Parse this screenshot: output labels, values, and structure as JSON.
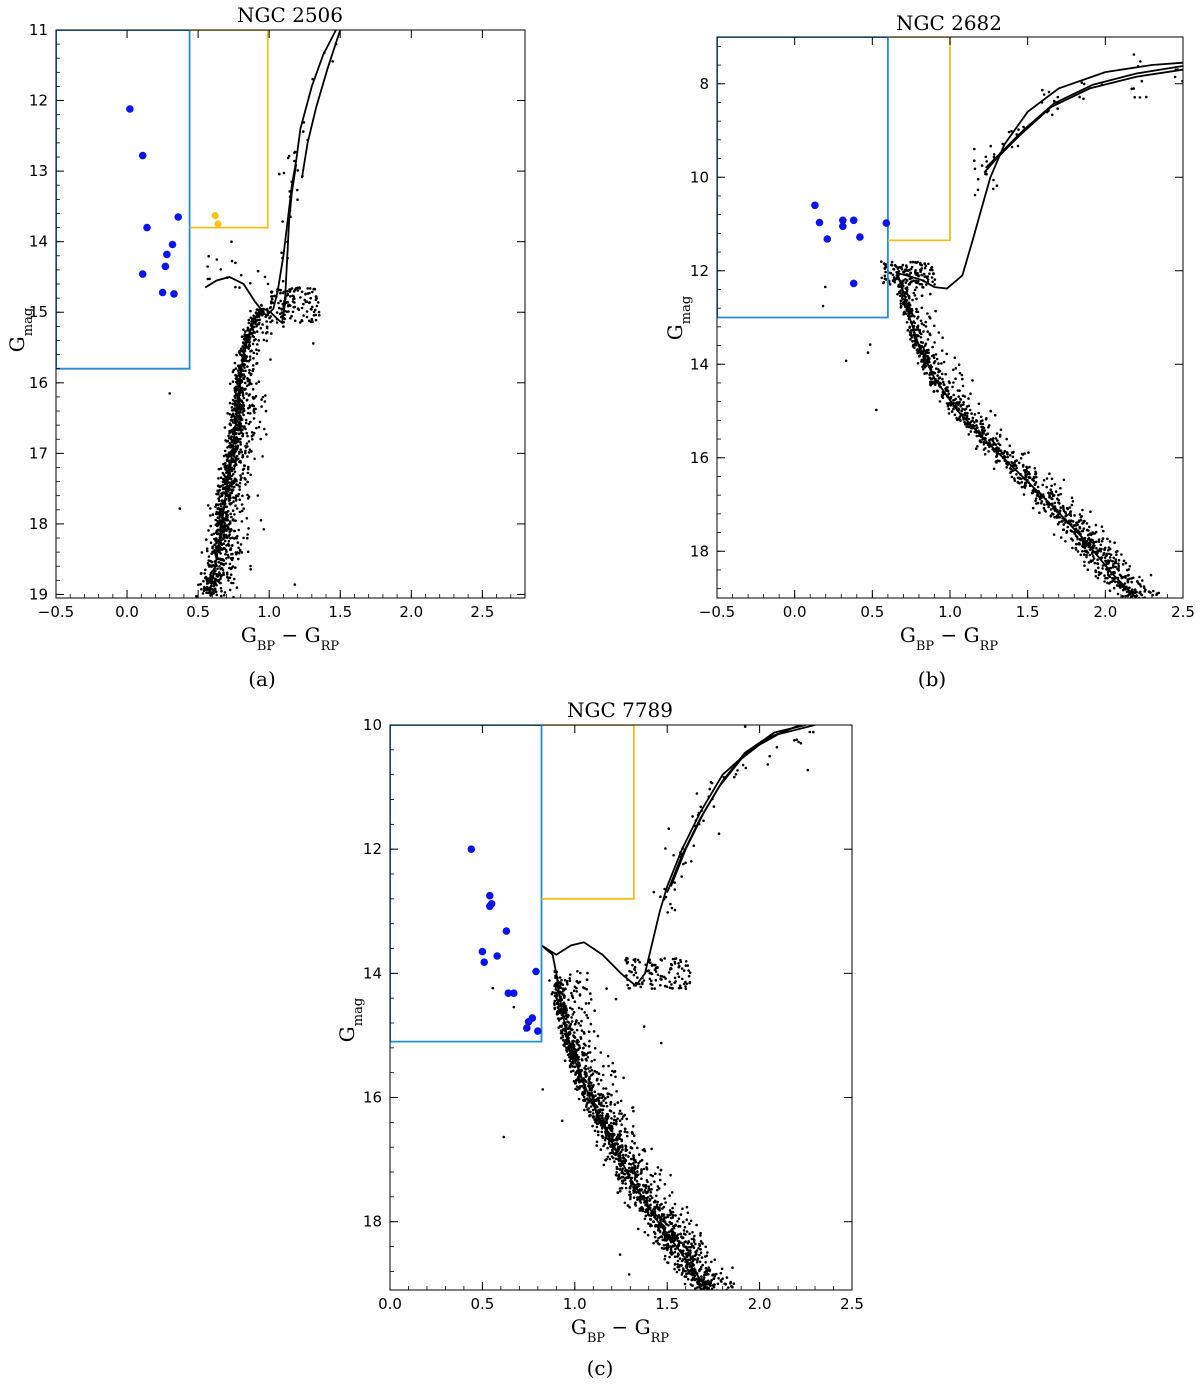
{
  "chart_data": [
    {
      "type": "scatter",
      "title": "NGC 2506",
      "caption": "(a)",
      "xlabel": "G_BP − G_RP",
      "ylabel": "G_mag",
      "xlim": [
        -0.5,
        2.8
      ],
      "ylim": [
        19.05,
        11.0
      ],
      "xticks": [
        -0.5,
        0.0,
        0.5,
        1.0,
        1.5,
        2.0,
        2.5
      ],
      "xticklabels": [
        "−0.5",
        "0.0",
        "0.5",
        "1.0",
        "1.5",
        "2.0",
        "2.5"
      ],
      "yticks": [
        11,
        12,
        13,
        14,
        15,
        16,
        17,
        18,
        19
      ],
      "yticklabels": [
        "11",
        "12",
        "13",
        "14",
        "15",
        "16",
        "17",
        "18",
        "19"
      ],
      "colors": {
        "blue_box": "#1f8fdc",
        "yellow_box": "#f2c018",
        "blue_stars": "#0a14ee",
        "yellow_stars": "#f7c31b",
        "members": "#000000"
      },
      "blue_box": {
        "x": [
          -0.5,
          0.44
        ],
        "y": [
          11.0,
          15.8
        ]
      },
      "yellow_box": {
        "x": [
          0.44,
          0.99
        ],
        "y": [
          11.0,
          13.8
        ]
      },
      "isochrone": {
        "ms": [
          [
            0.58,
            19.0
          ],
          [
            0.62,
            18.6
          ],
          [
            0.66,
            18.1
          ],
          [
            0.7,
            17.5
          ],
          [
            0.74,
            17.0
          ],
          [
            0.77,
            16.5
          ],
          [
            0.79,
            16.0
          ],
          [
            0.82,
            15.6
          ],
          [
            0.86,
            15.3
          ],
          [
            0.91,
            15.05
          ],
          [
            0.96,
            14.95
          ],
          [
            1.01,
            15.0
          ],
          [
            1.06,
            15.1
          ],
          [
            1.09,
            15.15
          ],
          [
            1.11,
            14.9
          ],
          [
            1.12,
            14.5
          ],
          [
            1.13,
            14.1
          ],
          [
            1.14,
            13.7
          ],
          [
            1.16,
            13.3
          ],
          [
            1.19,
            12.9
          ]
        ],
        "hook": [
          [
            0.55,
            14.65
          ],
          [
            0.63,
            14.55
          ],
          [
            0.72,
            14.5
          ],
          [
            0.82,
            14.6
          ],
          [
            0.9,
            14.85
          ],
          [
            0.98,
            15.05
          ],
          [
            1.03,
            14.95
          ],
          [
            1.06,
            14.7
          ],
          [
            1.1,
            14.2
          ],
          [
            1.13,
            13.7
          ],
          [
            1.16,
            13.2
          ],
          [
            1.19,
            12.85
          ],
          [
            1.22,
            12.4
          ],
          [
            1.3,
            11.8
          ],
          [
            1.38,
            11.35
          ],
          [
            1.47,
            11.0
          ]
        ],
        "rgb2": [
          [
            1.23,
            13.1
          ],
          [
            1.27,
            12.6
          ],
          [
            1.33,
            12.1
          ],
          [
            1.41,
            11.55
          ],
          [
            1.5,
            11.0
          ]
        ]
      },
      "blue_stars": [
        [
          0.02,
          12.12
        ],
        [
          0.11,
          12.78
        ],
        [
          0.14,
          13.8
        ],
        [
          0.36,
          13.65
        ],
        [
          0.32,
          14.04
        ],
        [
          0.28,
          14.18
        ],
        [
          0.27,
          14.35
        ],
        [
          0.11,
          14.46
        ],
        [
          0.25,
          14.72
        ],
        [
          0.33,
          14.74
        ]
      ],
      "yellow_stars": [
        [
          0.62,
          13.63
        ],
        [
          0.64,
          13.75
        ]
      ],
      "members": {
        "cmd_offset": 0.0,
        "ms_turnoff_x": 0.55,
        "ms_turnoff_y": 14.7,
        "ms_bottom_x": 1.22,
        "ms_bottom_y": 19.0,
        "n": 1300
      }
    },
    {
      "type": "scatter",
      "title": "NGC 2682",
      "caption": "(b)",
      "xlabel": "G_BP − G_RP",
      "ylabel": "G_mag",
      "xlim": [
        -0.5,
        2.5
      ],
      "ylim": [
        19.0,
        7.0
      ],
      "xticks": [
        -0.5,
        0.0,
        0.5,
        1.0,
        1.5,
        2.0,
        2.5
      ],
      "xticklabels": [
        "−0.5",
        "0.0",
        "0.5",
        "1.0",
        "1.5",
        "2.0",
        "2.5"
      ],
      "yticks": [
        8,
        10,
        12,
        14,
        16,
        18
      ],
      "yticklabels": [
        "8",
        "10",
        "12",
        "14",
        "16",
        "18"
      ],
      "colors": {
        "blue_box": "#1f8fdc",
        "yellow_box": "#f2c018",
        "blue_stars": "#0a14ee",
        "members": "#000000"
      },
      "blue_box": {
        "x": [
          -0.5,
          0.6
        ],
        "y": [
          7.0,
          13.0
        ]
      },
      "yellow_box": {
        "x": [
          0.6,
          1.0
        ],
        "y": [
          7.0,
          11.35
        ]
      },
      "isochrone": {
        "ms": [
          [
            2.2,
            19.0
          ],
          [
            2.05,
            18.5
          ],
          [
            1.85,
            17.7
          ],
          [
            1.65,
            17.0
          ],
          [
            1.45,
            16.35
          ],
          [
            1.25,
            15.7
          ],
          [
            1.05,
            15.0
          ],
          [
            0.9,
            14.3
          ],
          [
            0.8,
            13.6
          ],
          [
            0.74,
            13.0
          ],
          [
            0.71,
            12.55
          ],
          [
            0.68,
            12.25
          ],
          [
            0.66,
            12.05
          ],
          [
            0.72,
            12.1
          ],
          [
            0.82,
            12.2
          ],
          [
            0.9,
            12.35
          ],
          [
            0.98,
            12.38
          ],
          [
            1.08,
            12.1
          ],
          [
            1.15,
            11.3
          ],
          [
            1.2,
            10.7
          ],
          [
            1.26,
            10.0
          ],
          [
            1.35,
            9.3
          ],
          [
            1.5,
            8.6
          ],
          [
            1.7,
            8.1
          ],
          [
            2.0,
            7.75
          ],
          [
            2.3,
            7.6
          ],
          [
            2.5,
            7.55
          ]
        ],
        "hook": [
          [
            1.22,
            9.9
          ],
          [
            1.3,
            9.6
          ],
          [
            1.45,
            9.1
          ],
          [
            1.65,
            8.5
          ],
          [
            1.9,
            8.1
          ],
          [
            2.2,
            7.85
          ],
          [
            2.5,
            7.7
          ]
        ],
        "rgb2": [
          [
            1.23,
            9.8
          ],
          [
            1.32,
            9.5
          ],
          [
            1.47,
            9.0
          ],
          [
            1.67,
            8.42
          ],
          [
            1.92,
            8.02
          ],
          [
            2.2,
            7.78
          ],
          [
            2.5,
            7.62
          ]
        ]
      },
      "blue_stars": [
        [
          0.13,
          10.6
        ],
        [
          0.16,
          10.97
        ],
        [
          0.21,
          11.32
        ],
        [
          0.31,
          11.05
        ],
        [
          0.31,
          10.92
        ],
        [
          0.38,
          10.92
        ],
        [
          0.42,
          11.28
        ],
        [
          0.38,
          12.27
        ],
        [
          0.59,
          10.98
        ]
      ],
      "members": {
        "cmd_offset": 0.0,
        "n": 1200
      }
    },
    {
      "type": "scatter",
      "title": "NGC 7789",
      "caption": "(c)",
      "xlabel": "G_BP − G_RP",
      "ylabel": "G_mag",
      "xlim": [
        0.0,
        2.5
      ],
      "ylim": [
        19.1,
        10.0
      ],
      "xticks": [
        0.0,
        0.5,
        1.0,
        1.5,
        2.0,
        2.5
      ],
      "xticklabels": [
        "0.0",
        "0.5",
        "1.0",
        "1.5",
        "2.0",
        "2.5"
      ],
      "yticks": [
        10,
        12,
        14,
        16,
        18
      ],
      "yticklabels": [
        "10",
        "12",
        "14",
        "16",
        "18"
      ],
      "colors": {
        "blue_box": "#1f8fdc",
        "yellow_box": "#f2c018",
        "blue_stars": "#0a14ee",
        "members": "#000000"
      },
      "blue_box": {
        "x": [
          0.0,
          0.82
        ],
        "y": [
          10.0,
          15.1
        ]
      },
      "yellow_box": {
        "x": [
          0.82,
          1.32
        ],
        "y": [
          10.0,
          12.8
        ]
      },
      "isochrone": {
        "ms": [
          [
            1.72,
            19.1
          ],
          [
            1.6,
            18.6
          ],
          [
            1.45,
            18.0
          ],
          [
            1.3,
            17.3
          ],
          [
            1.18,
            16.6
          ],
          [
            1.08,
            16.0
          ],
          [
            1.0,
            15.4
          ],
          [
            0.95,
            14.9
          ],
          [
            0.92,
            14.4
          ],
          [
            0.9,
            14.0
          ],
          [
            0.88,
            13.7
          ],
          [
            0.82,
            13.55
          ],
          [
            0.9,
            13.7
          ],
          [
            0.98,
            13.55
          ],
          [
            1.05,
            13.5
          ],
          [
            1.15,
            13.7
          ],
          [
            1.25,
            14.0
          ],
          [
            1.33,
            14.2
          ],
          [
            1.38,
            14.0
          ],
          [
            1.42,
            13.5
          ],
          [
            1.46,
            13.0
          ],
          [
            1.5,
            12.6
          ],
          [
            1.58,
            12.0
          ],
          [
            1.68,
            11.4
          ],
          [
            1.8,
            10.8
          ],
          [
            1.95,
            10.4
          ],
          [
            2.1,
            10.15
          ],
          [
            2.3,
            10.0
          ]
        ],
        "hook": [
          [
            1.5,
            12.7
          ],
          [
            1.58,
            12.1
          ],
          [
            1.68,
            11.5
          ],
          [
            1.78,
            11.0
          ],
          [
            1.9,
            10.55
          ],
          [
            2.05,
            10.2
          ],
          [
            2.22,
            10.0
          ]
        ],
        "rgb2": [
          [
            1.52,
            12.6
          ],
          [
            1.6,
            12.0
          ],
          [
            1.7,
            11.4
          ],
          [
            1.8,
            10.9
          ],
          [
            1.92,
            10.45
          ],
          [
            2.08,
            10.12
          ],
          [
            2.25,
            10.0
          ]
        ]
      },
      "blue_stars": [
        [
          0.44,
          12.0
        ],
        [
          0.54,
          12.75
        ],
        [
          0.55,
          12.88
        ],
        [
          0.54,
          12.92
        ],
        [
          0.63,
          13.32
        ],
        [
          0.5,
          13.65
        ],
        [
          0.58,
          13.72
        ],
        [
          0.51,
          13.82
        ],
        [
          0.79,
          13.97
        ],
        [
          0.64,
          14.32
        ],
        [
          0.67,
          14.32
        ],
        [
          0.77,
          14.72
        ],
        [
          0.75,
          14.78
        ],
        [
          0.74,
          14.88
        ],
        [
          0.8,
          14.93
        ]
      ],
      "members": {
        "cmd_offset": 0.0,
        "n": 1800
      }
    }
  ]
}
